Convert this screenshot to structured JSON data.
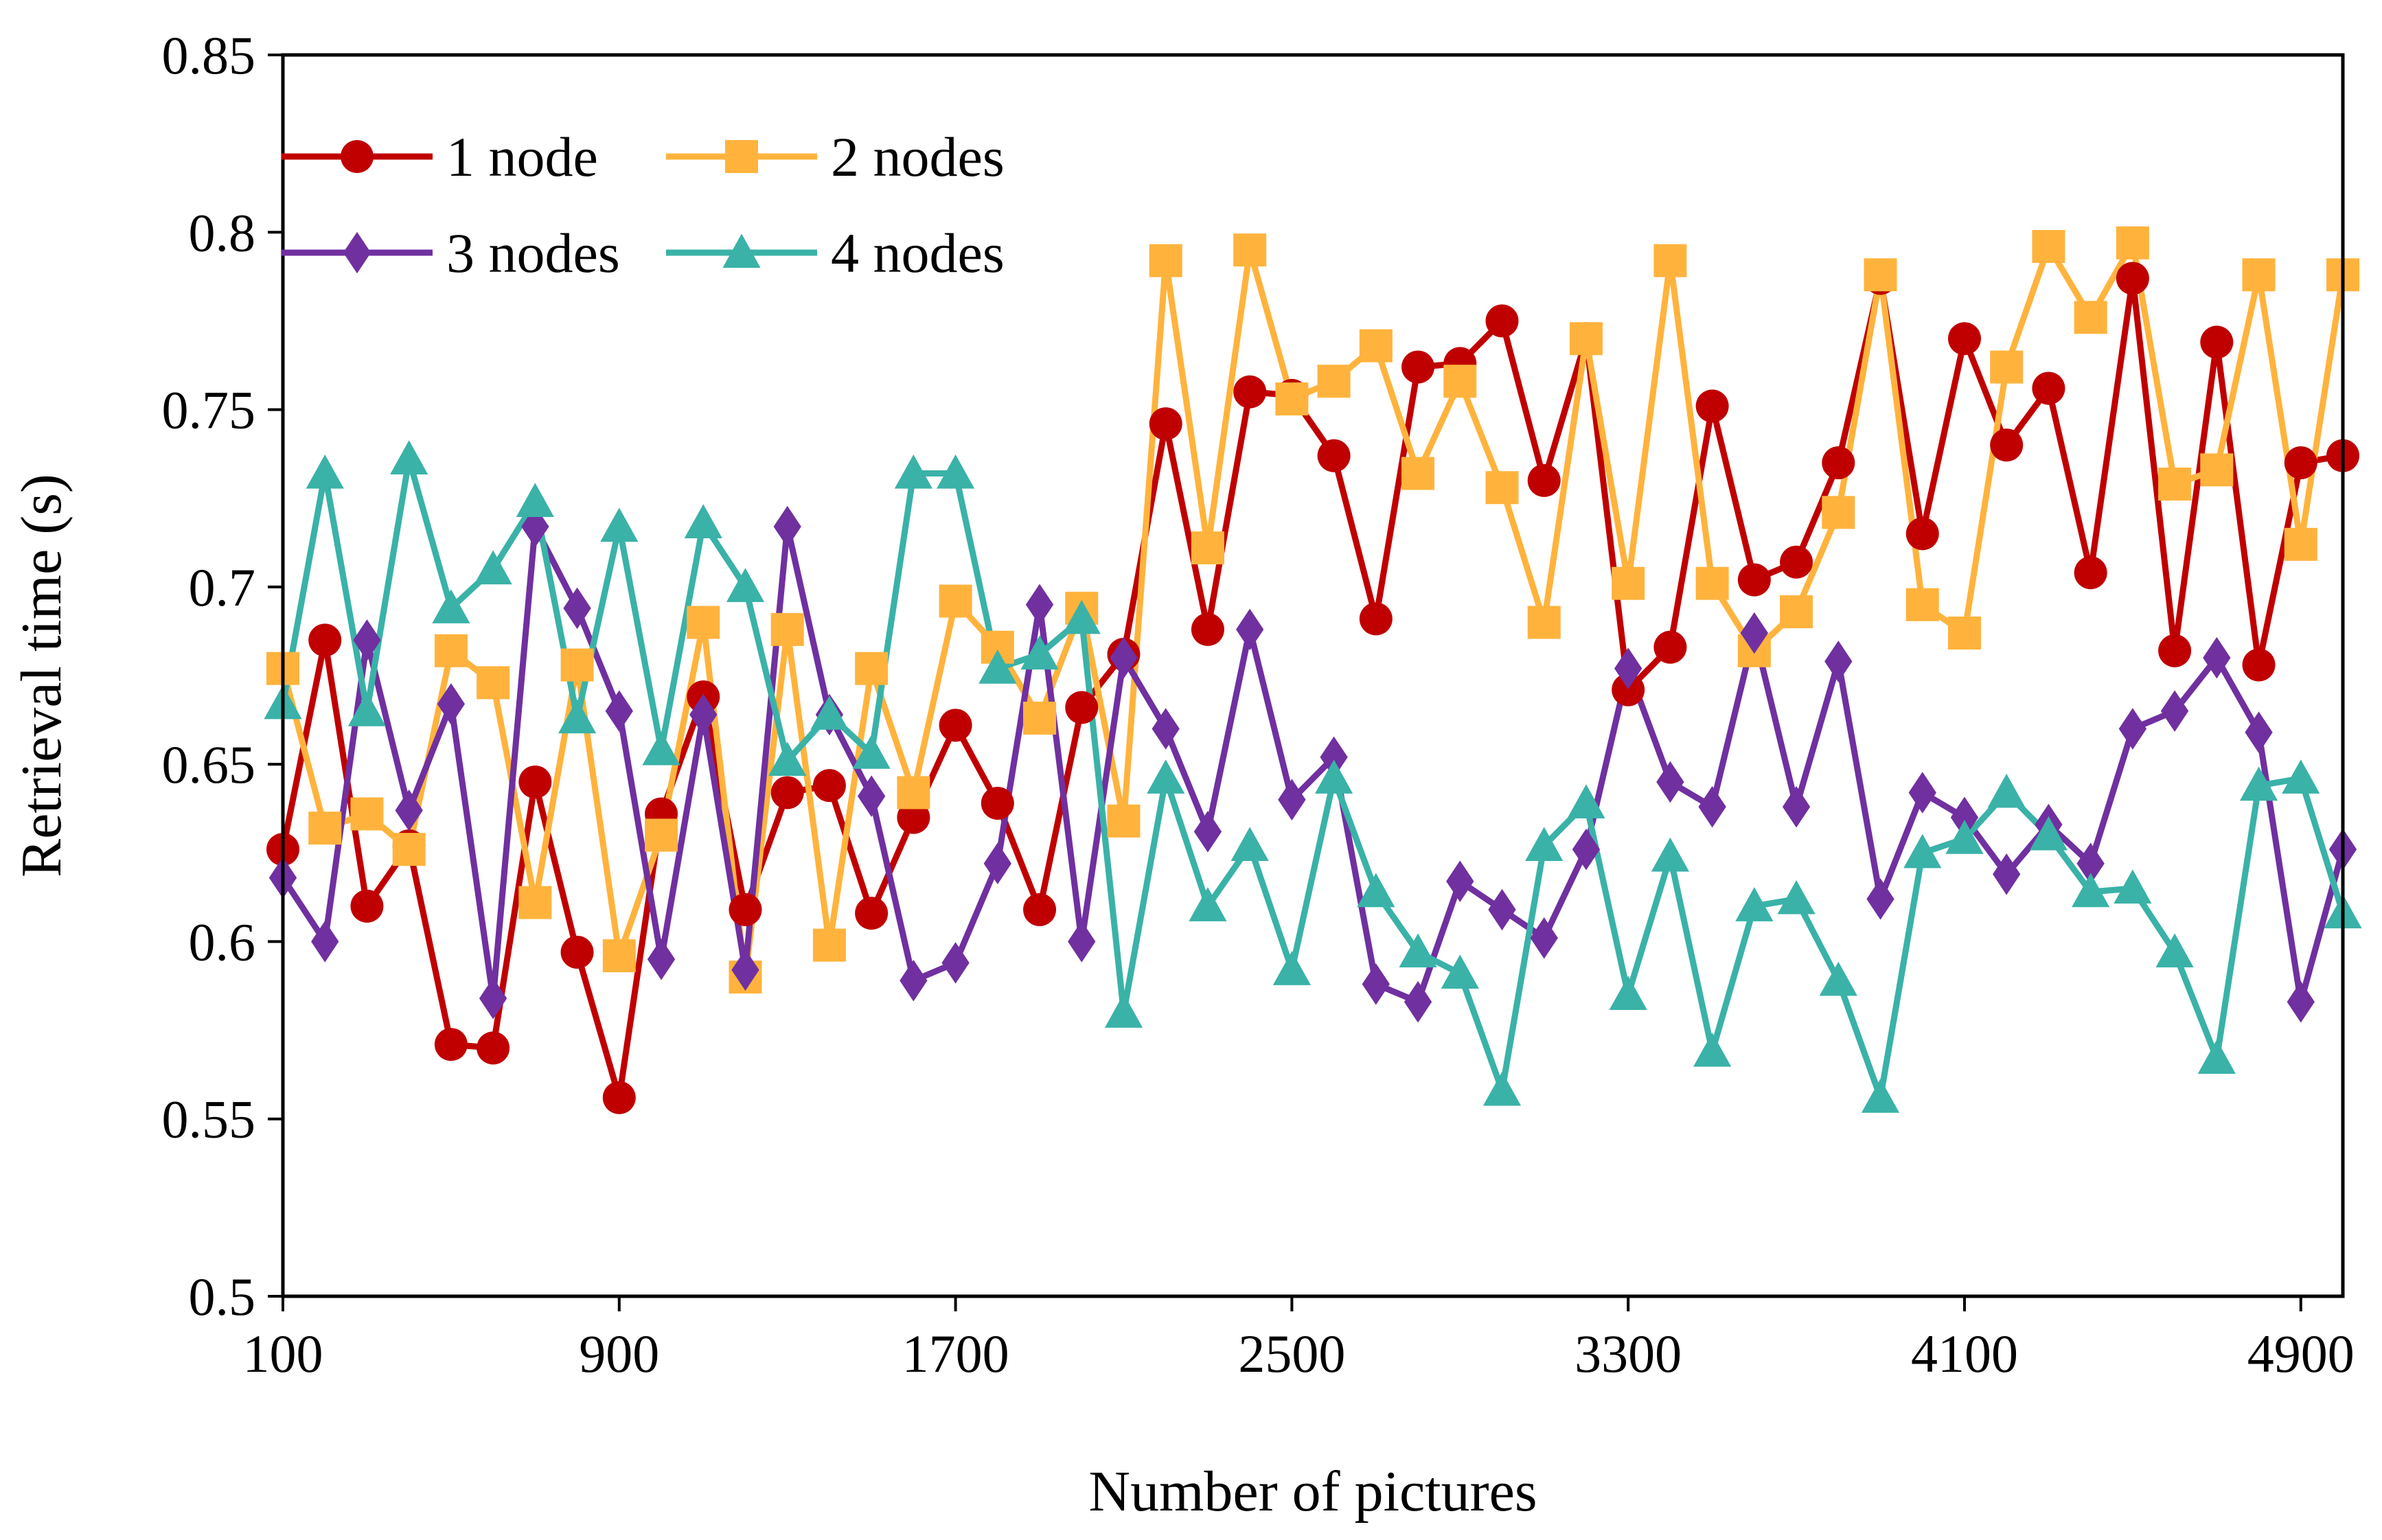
{
  "chart_data": {
    "type": "line",
    "title": "",
    "xlabel": "Number of pictures",
    "ylabel": "Retrieval time  (s)",
    "xlim": [
      100,
      5000
    ],
    "ylim": [
      0.5,
      0.85
    ],
    "x_ticks": [
      100,
      900,
      1700,
      2500,
      3300,
      4100,
      4900
    ],
    "x_tick_labels": [
      "100",
      "900",
      "1700",
      "2500",
      "3300",
      "4100",
      "4900"
    ],
    "y_ticks": [
      0.5,
      0.55,
      0.6,
      0.65,
      0.7,
      0.75,
      0.8,
      0.85
    ],
    "y_tick_labels": [
      "0.5",
      "0.55",
      "0.6",
      "0.65",
      "0.7",
      "0.75",
      "0.8",
      "0.85"
    ],
    "grid": false,
    "legend_position": "top-left",
    "x": [
      100,
      200,
      300,
      400,
      500,
      600,
      700,
      800,
      900,
      1000,
      1100,
      1200,
      1300,
      1400,
      1500,
      1600,
      1700,
      1800,
      1900,
      2000,
      2100,
      2200,
      2300,
      2400,
      2500,
      2600,
      2700,
      2800,
      2900,
      3000,
      3100,
      3200,
      3300,
      3400,
      3500,
      3600,
      3700,
      3800,
      3900,
      4000,
      4100,
      4200,
      4300,
      4400,
      4500,
      4600,
      4700,
      4800,
      4900,
      5000
    ],
    "series": [
      {
        "name": "1 node",
        "color": "#C00000",
        "marker": "circle",
        "values": [
          0.626,
          0.685,
          0.61,
          0.627,
          0.571,
          0.57,
          0.645,
          0.597,
          0.556,
          0.636,
          0.669,
          0.609,
          0.642,
          0.644,
          0.608,
          0.635,
          0.661,
          0.639,
          0.609,
          0.666,
          0.681,
          0.746,
          0.688,
          0.755,
          0.754,
          0.737,
          0.691,
          0.762,
          0.763,
          0.775,
          0.73,
          0.77,
          0.671,
          0.683,
          0.751,
          0.702,
          0.707,
          0.735,
          0.787,
          0.715,
          0.77,
          0.74,
          0.756,
          0.704,
          0.787,
          0.682,
          0.769,
          0.678,
          0.735,
          0.737
        ]
      },
      {
        "name": "2 nodes",
        "color": "#FFB33D",
        "marker": "square",
        "values": [
          0.677,
          0.632,
          0.636,
          0.626,
          0.682,
          0.673,
          0.611,
          0.678,
          0.596,
          0.63,
          0.69,
          0.59,
          0.688,
          0.599,
          0.677,
          0.642,
          0.696,
          0.683,
          0.663,
          0.694,
          0.634,
          0.792,
          0.711,
          0.795,
          0.753,
          0.758,
          0.768,
          0.732,
          0.758,
          0.728,
          0.69,
          0.77,
          0.701,
          0.792,
          0.701,
          0.682,
          0.693,
          0.721,
          0.788,
          0.695,
          0.687,
          0.762,
          0.796,
          0.776,
          0.797,
          0.729,
          0.733,
          0.788,
          0.712,
          0.788
        ]
      },
      {
        "name": "3 nodes",
        "color": "#7030A0",
        "marker": "diamond",
        "values": [
          0.618,
          0.6,
          0.685,
          0.637,
          0.667,
          0.584,
          0.717,
          0.694,
          0.665,
          0.595,
          0.664,
          0.592,
          0.717,
          0.664,
          0.641,
          0.589,
          0.594,
          0.622,
          0.695,
          0.6,
          0.68,
          0.66,
          0.631,
          0.688,
          0.64,
          0.652,
          0.588,
          0.583,
          0.617,
          0.609,
          0.601,
          0.626,
          0.677,
          0.645,
          0.638,
          0.687,
          0.638,
          0.679,
          0.612,
          0.642,
          0.635,
          0.619,
          0.633,
          0.622,
          0.66,
          0.665,
          0.68,
          0.659,
          0.583,
          0.626
        ]
      },
      {
        "name": "4 nodes",
        "color": "#3AB2A8",
        "marker": "triangle",
        "values": [
          0.667,
          0.732,
          0.665,
          0.736,
          0.694,
          0.705,
          0.724,
          0.663,
          0.717,
          0.654,
          0.718,
          0.7,
          0.651,
          0.664,
          0.653,
          0.732,
          0.732,
          0.677,
          0.681,
          0.691,
          0.58,
          0.646,
          0.61,
          0.627,
          0.592,
          0.646,
          0.614,
          0.597,
          0.591,
          0.558,
          0.627,
          0.639,
          0.585,
          0.624,
          0.569,
          0.61,
          0.612,
          0.589,
          0.556,
          0.625,
          0.629,
          0.642,
          0.63,
          0.614,
          0.615,
          0.597,
          0.567,
          0.644,
          0.646,
          0.608
        ]
      }
    ]
  }
}
